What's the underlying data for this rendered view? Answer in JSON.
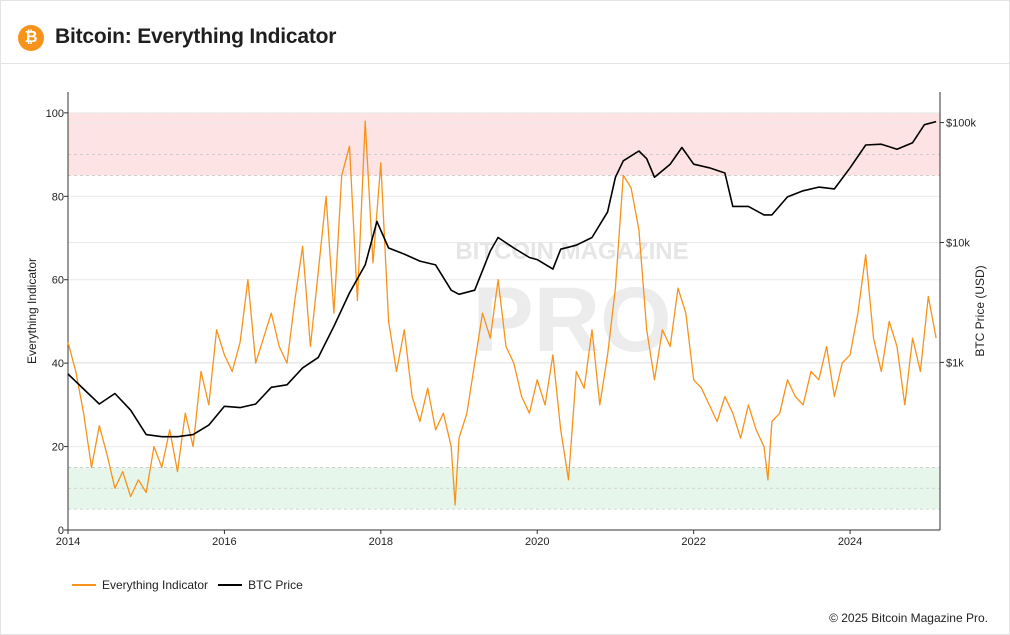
{
  "header": {
    "logo_glyph": "₿",
    "title": "Bitcoin: Everything Indicator"
  },
  "watermark": {
    "line1": "BITCOIN MAGAZINE",
    "line2": "PRO"
  },
  "legend": [
    {
      "label": "Everything Indicator",
      "color": "#f7931a"
    },
    {
      "label": "BTC Price",
      "color": "#000000"
    }
  ],
  "copyright": "© 2025 Bitcoin Magazine Pro.",
  "colors": {
    "indicator": "#f7931a",
    "price": "#000000",
    "high_zone": "#fde3e3",
    "low_zone": "#e6f6ea",
    "grid": "#e9e9e9"
  },
  "chart_data": {
    "type": "line",
    "title": "Bitcoin: Everything Indicator",
    "xlabel": "",
    "ylabel": "Everything Indicator",
    "y2label": "BTC Price (USD)",
    "xlim": [
      2014.0,
      2025.15
    ],
    "ylim": [
      0,
      105
    ],
    "y2_scale": "log",
    "y2lim": [
      40,
      180000
    ],
    "x_ticks": [
      "2014",
      "2016",
      "2018",
      "2020",
      "2022",
      "2024"
    ],
    "y_ticks": [
      "0",
      "20",
      "40",
      "60",
      "80",
      "100"
    ],
    "y2_ticks": [
      {
        "value": 1000,
        "label": "$1k"
      },
      {
        "value": 10000,
        "label": "$10k"
      },
      {
        "value": 100000,
        "label": "$100k"
      }
    ],
    "bands": [
      {
        "name": "high-zone",
        "from": 85,
        "to": 100,
        "midline": 90
      },
      {
        "name": "low-zone",
        "from": 5,
        "to": 15,
        "midline": 10
      }
    ],
    "series": [
      {
        "name": "Everything Indicator",
        "axis": "left",
        "x": [
          2014.0,
          2014.1,
          2014.2,
          2014.3,
          2014.4,
          2014.5,
          2014.6,
          2014.7,
          2014.8,
          2014.9,
          2015.0,
          2015.1,
          2015.2,
          2015.3,
          2015.4,
          2015.5,
          2015.6,
          2015.7,
          2015.8,
          2015.9,
          2016.0,
          2016.1,
          2016.2,
          2016.3,
          2016.4,
          2016.5,
          2016.6,
          2016.7,
          2016.8,
          2016.9,
          2017.0,
          2017.1,
          2017.2,
          2017.3,
          2017.4,
          2017.5,
          2017.6,
          2017.7,
          2017.8,
          2017.9,
          2018.0,
          2018.1,
          2018.2,
          2018.3,
          2018.4,
          2018.5,
          2018.6,
          2018.7,
          2018.8,
          2018.9,
          2018.95,
          2019.0,
          2019.1,
          2019.2,
          2019.3,
          2019.4,
          2019.5,
          2019.6,
          2019.7,
          2019.8,
          2019.9,
          2020.0,
          2020.1,
          2020.2,
          2020.3,
          2020.4,
          2020.5,
          2020.6,
          2020.7,
          2020.8,
          2020.9,
          2021.0,
          2021.1,
          2021.2,
          2021.3,
          2021.4,
          2021.5,
          2021.6,
          2021.7,
          2021.8,
          2021.9,
          2022.0,
          2022.1,
          2022.2,
          2022.3,
          2022.4,
          2022.5,
          2022.6,
          2022.7,
          2022.8,
          2022.9,
          2022.95,
          2023.0,
          2023.1,
          2023.2,
          2023.3,
          2023.4,
          2023.5,
          2023.6,
          2023.7,
          2023.8,
          2023.9,
          2024.0,
          2024.1,
          2024.2,
          2024.3,
          2024.4,
          2024.5,
          2024.6,
          2024.7,
          2024.8,
          2024.9,
          2025.0,
          2025.1
        ],
        "values": [
          45,
          38,
          28,
          15,
          25,
          18,
          10,
          14,
          8,
          12,
          9,
          20,
          15,
          24,
          14,
          28,
          20,
          38,
          30,
          48,
          42,
          38,
          45,
          60,
          40,
          46,
          52,
          44,
          40,
          55,
          68,
          44,
          62,
          80,
          52,
          85,
          92,
          55,
          98,
          64,
          88,
          50,
          38,
          48,
          32,
          26,
          34,
          24,
          28,
          20,
          6,
          22,
          28,
          40,
          52,
          46,
          60,
          44,
          40,
          32,
          28,
          36,
          30,
          42,
          24,
          12,
          38,
          34,
          48,
          30,
          42,
          58,
          85,
          82,
          72,
          48,
          36,
          48,
          44,
          58,
          52,
          36,
          34,
          30,
          26,
          32,
          28,
          22,
          30,
          24,
          20,
          12,
          26,
          28,
          36,
          32,
          30,
          38,
          36,
          44,
          32,
          40,
          42,
          52,
          66,
          46,
          38,
          50,
          44,
          30,
          46,
          38,
          56,
          46
        ],
        "color": "#f7931a"
      },
      {
        "name": "BTC Price",
        "axis": "right",
        "x": [
          2014.0,
          2014.2,
          2014.4,
          2014.6,
          2014.8,
          2015.0,
          2015.2,
          2015.4,
          2015.6,
          2015.8,
          2016.0,
          2016.2,
          2016.4,
          2016.6,
          2016.8,
          2017.0,
          2017.2,
          2017.4,
          2017.6,
          2017.8,
          2017.95,
          2018.1,
          2018.3,
          2018.5,
          2018.7,
          2018.9,
          2019.0,
          2019.2,
          2019.4,
          2019.5,
          2019.7,
          2019.9,
          2020.0,
          2020.2,
          2020.3,
          2020.5,
          2020.7,
          2020.9,
          2021.0,
          2021.1,
          2021.3,
          2021.4,
          2021.5,
          2021.7,
          2021.85,
          2022.0,
          2022.2,
          2022.4,
          2022.5,
          2022.7,
          2022.9,
          2023.0,
          2023.2,
          2023.4,
          2023.6,
          2023.8,
          2024.0,
          2024.2,
          2024.4,
          2024.6,
          2024.8,
          2024.95,
          2025.1
        ],
        "values": [
          800,
          600,
          450,
          550,
          400,
          250,
          240,
          240,
          250,
          300,
          430,
          420,
          450,
          620,
          650,
          900,
          1100,
          2000,
          3800,
          6500,
          15000,
          9000,
          8000,
          7000,
          6500,
          4000,
          3700,
          4000,
          8500,
          11000,
          9000,
          7500,
          7200,
          6000,
          8800,
          9500,
          11000,
          18000,
          35000,
          48000,
          58000,
          50000,
          35000,
          45000,
          62000,
          45000,
          42000,
          38000,
          20000,
          20000,
          17000,
          17000,
          24000,
          27000,
          29000,
          28000,
          42000,
          65000,
          66000,
          60000,
          68000,
          96000,
          102000
        ],
        "color": "#000000"
      }
    ]
  }
}
